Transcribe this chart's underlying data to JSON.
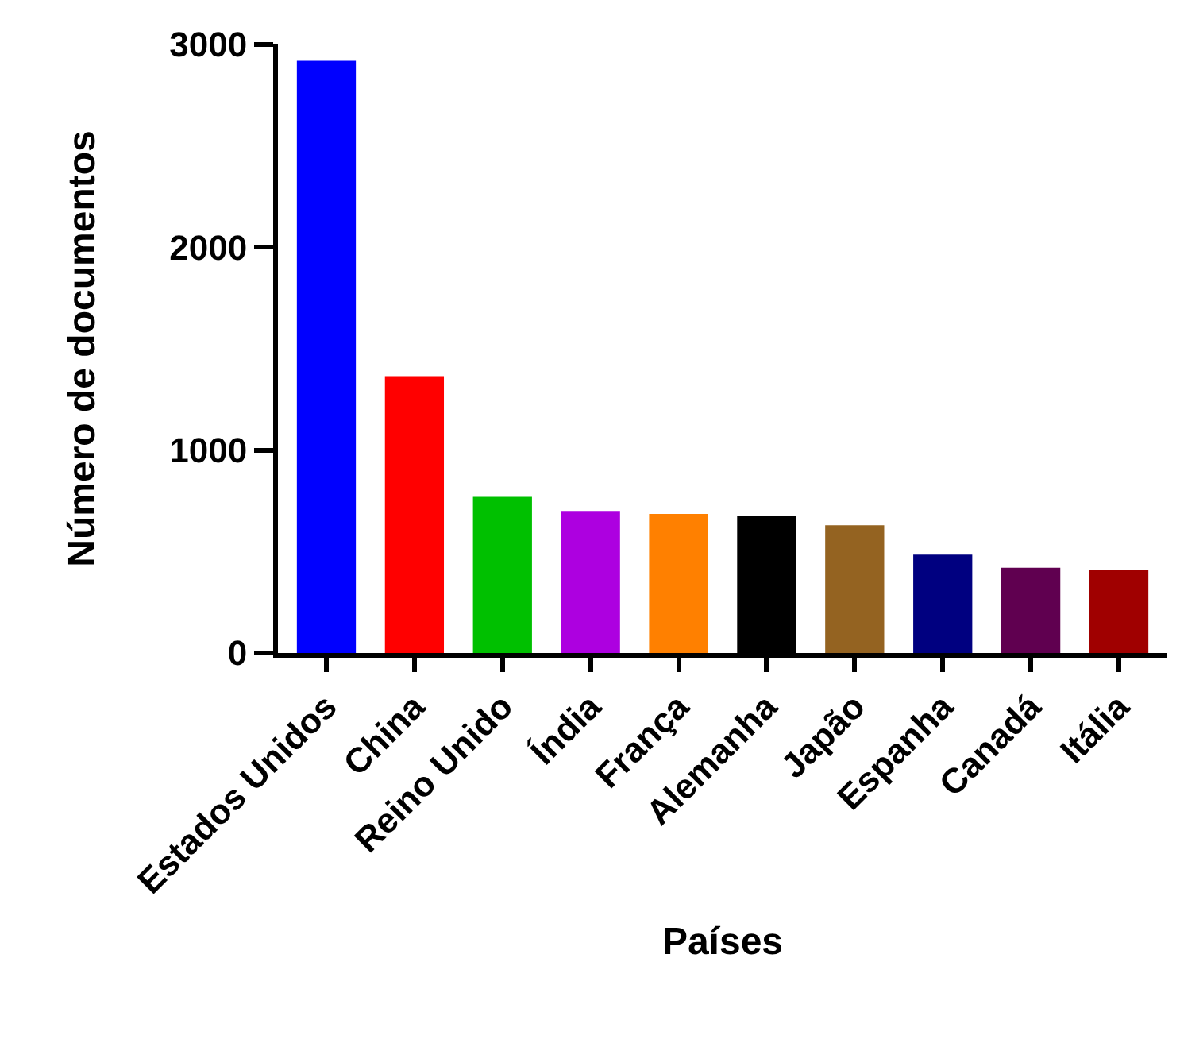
{
  "chart_data": {
    "type": "bar",
    "xlabel": "Países",
    "ylabel": "Número de documentos",
    "categories": [
      "Estados Unidos",
      "China",
      "Reino Unido",
      "Índia",
      "França",
      "Alemanha",
      "Japão",
      "Espanha",
      "Canadá",
      "Itália"
    ],
    "values": [
      2920,
      1365,
      770,
      700,
      685,
      675,
      630,
      485,
      420,
      410
    ],
    "colors": [
      "#0000ff",
      "#ff0000",
      "#00c000",
      "#ad00e0",
      "#ff8000",
      "#000000",
      "#946321",
      "#000080",
      "#600050",
      "#a00000"
    ],
    "ylim": [
      0,
      3000
    ],
    "yticks": [
      0,
      1000,
      2000,
      3000
    ]
  }
}
